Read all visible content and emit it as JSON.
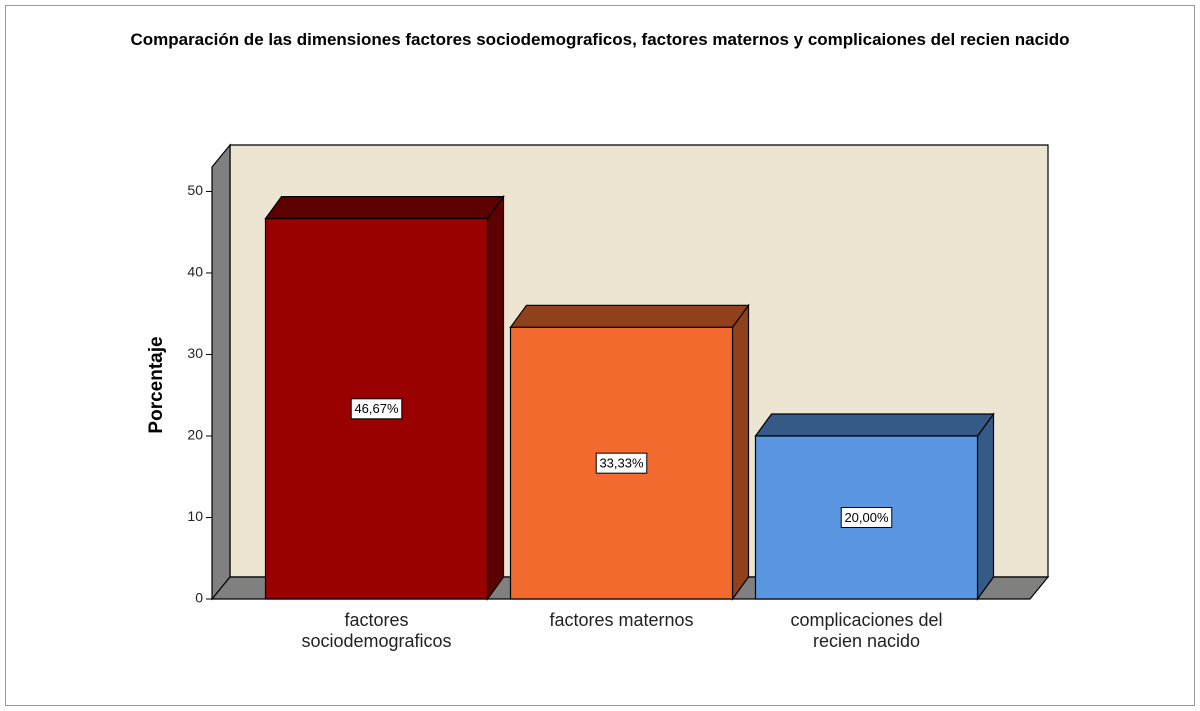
{
  "chart_data": {
    "type": "bar3d",
    "title": "Comparación de las dimensiones factores sociodemograficos, factores maternos y complicaiones del recien nacido",
    "y_label": "Porcentaje",
    "categories": [
      "factores sociodemograficos",
      "factores maternos",
      "complicaciones del recien nacido"
    ],
    "values": [
      46.67,
      33.33,
      20.0
    ],
    "value_labels": [
      "46,67%",
      "33,33%",
      "20,00%"
    ],
    "colors": [
      "#990000",
      "#f26a2e",
      "#5a96e2"
    ],
    "ylim": [
      0,
      53
    ],
    "yticks": [
      0,
      10,
      20,
      30,
      40,
      50
    ]
  }
}
